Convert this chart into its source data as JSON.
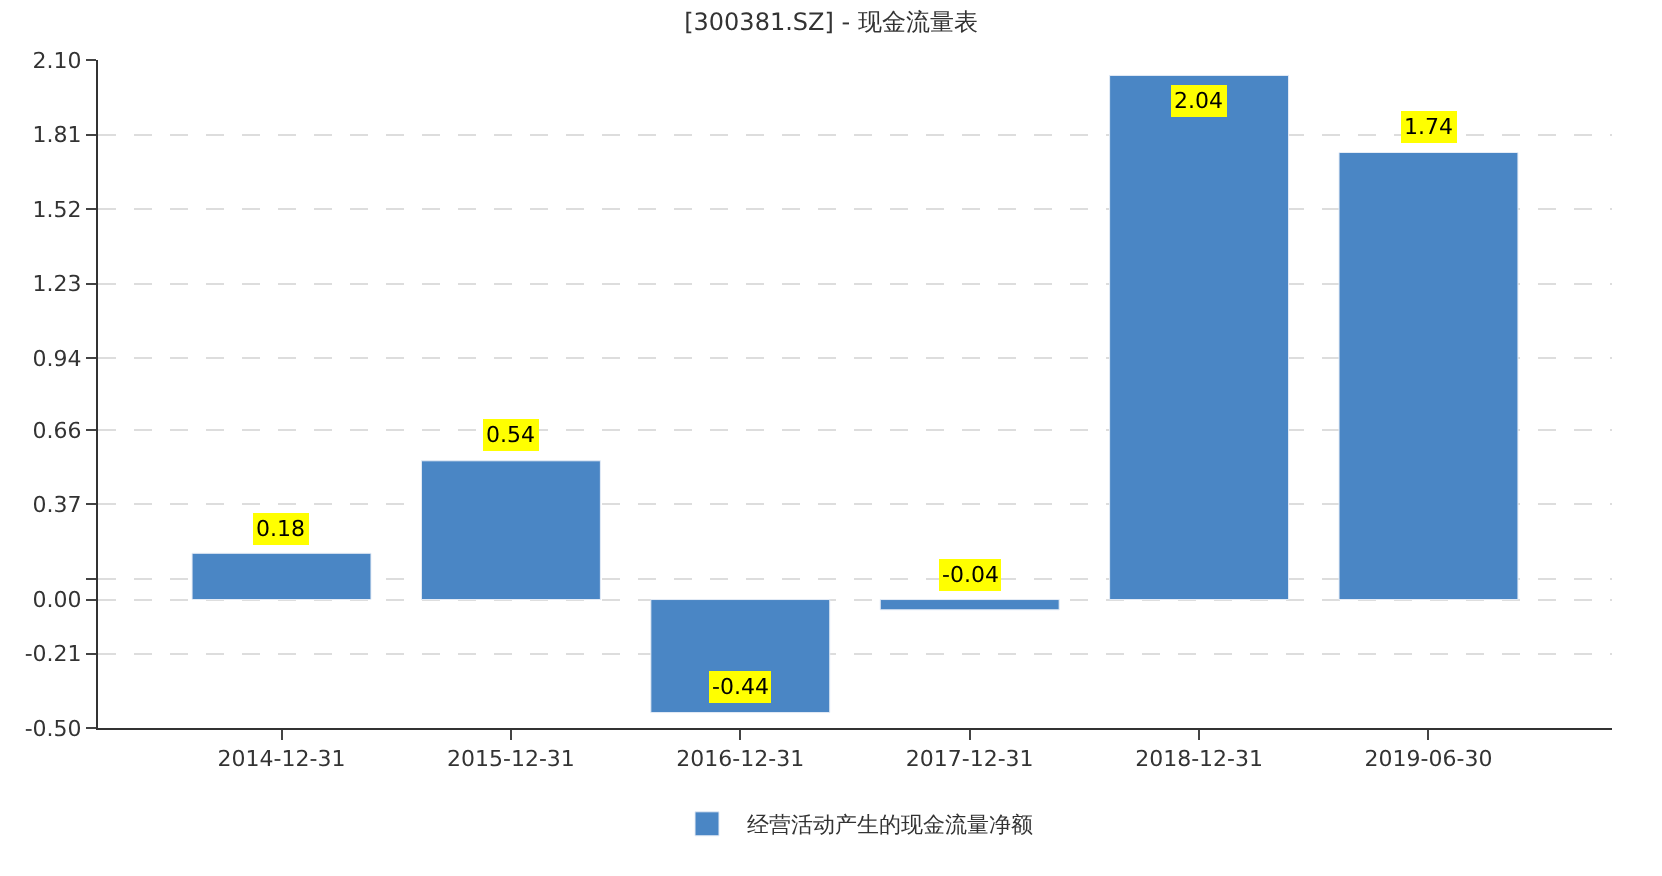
{
  "chart_data": {
    "type": "bar",
    "title": "[300381.SZ] - 现金流量表",
    "categories": [
      "2014-12-31",
      "2015-12-31",
      "2016-12-31",
      "2017-12-31",
      "2018-12-31",
      "2019-06-30"
    ],
    "series": [
      {
        "name": "经营活动产生的现金流量净额",
        "color": "#4a86c5",
        "values": [
          0.18,
          0.54,
          -0.44,
          -0.04,
          2.04,
          1.74
        ]
      }
    ],
    "ylim": [
      -0.5,
      2.1
    ],
    "yticks": [
      {
        "value": -0.5,
        "label": "-0.50"
      },
      -0.21,
      {
        "value": 0,
        "label": "0.00"
      },
      {
        "value": 0.08,
        "label": null
      },
      0.37,
      0.66,
      0.94,
      1.23,
      1.52,
      1.81,
      {
        "value": 2.1,
        "label": "2.10"
      }
    ],
    "data_labels": true,
    "grid": "y",
    "legend": "bottom"
  }
}
